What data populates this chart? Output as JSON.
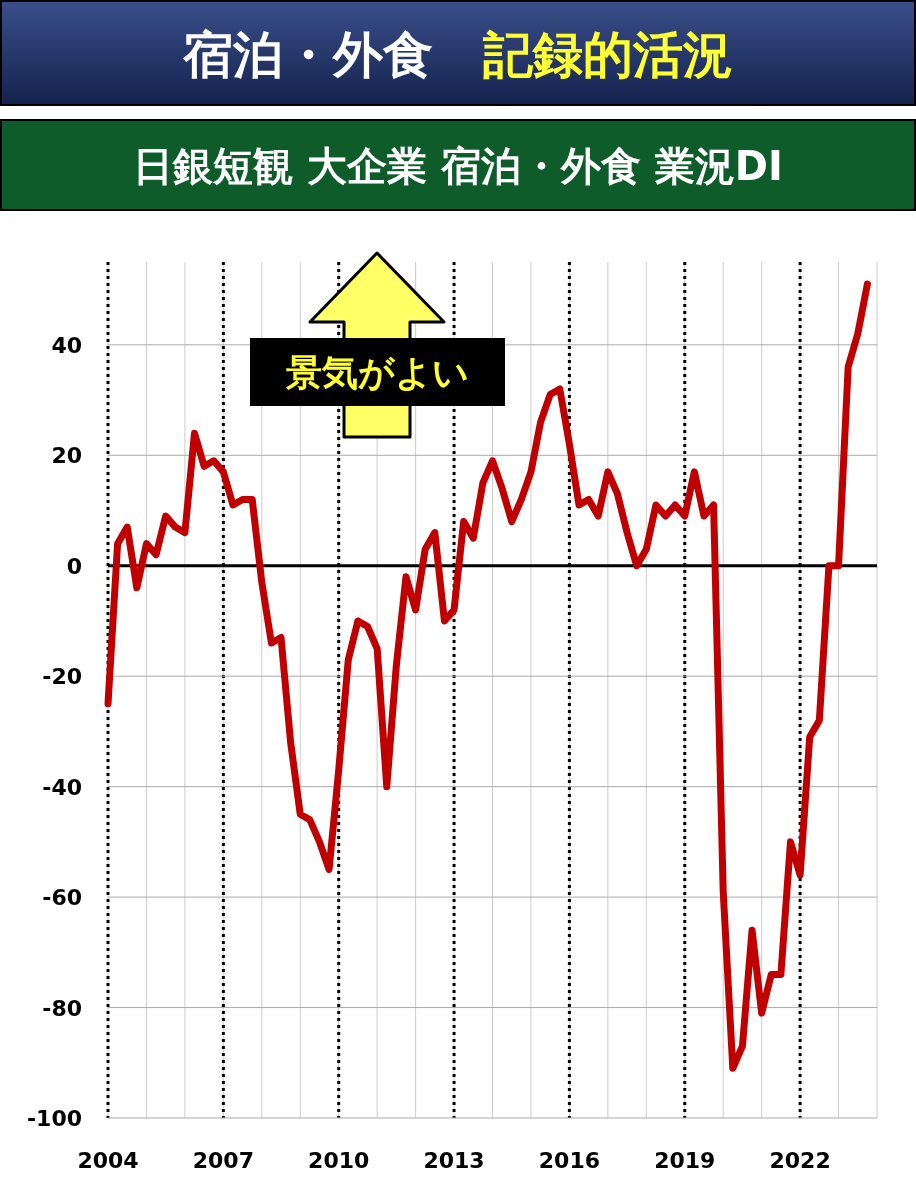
{
  "chart_data": {
    "type": "line",
    "title": "宿泊・外食　**記録的活況**",
    "subtitle": "日銀短観 大企業 宿泊・外食 業況DI",
    "annotations": [
      "景気がよい"
    ],
    "x": [
      2004,
      2004.25,
      2004.5,
      2004.75,
      2005,
      2005.25,
      2005.5,
      2005.75,
      2006,
      2006.25,
      2006.5,
      2006.75,
      2007,
      2007.25,
      2007.5,
      2007.75,
      2008,
      2008.25,
      2008.5,
      2008.75,
      2009,
      2009.25,
      2009.5,
      2009.75,
      2010,
      2010.25,
      2010.5,
      2010.75,
      2011,
      2011.25,
      2011.5,
      2011.75,
      2012,
      2012.25,
      2012.5,
      2012.75,
      2013,
      2013.25,
      2013.5,
      2013.75,
      2014,
      2014.25,
      2014.5,
      2014.75,
      2015,
      2015.25,
      2015.5,
      2015.75,
      2016,
      2016.25,
      2016.5,
      2016.75,
      2017,
      2017.25,
      2017.5,
      2017.75,
      2018,
      2018.25,
      2018.5,
      2018.75,
      2019,
      2019.25,
      2019.5,
      2019.75,
      2020,
      2020.25,
      2020.5,
      2020.75,
      2021,
      2021.25,
      2021.5,
      2021.75,
      2022,
      2022.25,
      2022.5,
      2022.75,
      2023,
      2023.25,
      2023.5,
      2023.75
    ],
    "series": [
      {
        "color": "#c00000",
        "values": [
          -25,
          4,
          7,
          -4,
          4,
          2,
          9,
          7,
          6,
          24,
          18,
          19,
          17,
          11,
          12,
          12,
          -3,
          -14,
          -13,
          -32,
          -45,
          -46,
          -50,
          -55,
          -37,
          -17,
          -10,
          -11,
          -15,
          -40,
          -18,
          -2,
          -8,
          3,
          6,
          -10,
          -8,
          8,
          5,
          15,
          19,
          14,
          8,
          12,
          17,
          26,
          31,
          32,
          22,
          11,
          12,
          9,
          17,
          13,
          6,
          0,
          3,
          11,
          9,
          11,
          9,
          17,
          9,
          11,
          -59,
          -91,
          -87,
          -66,
          -81,
          -74,
          -74,
          -50,
          -56,
          -31,
          -28,
          0,
          0,
          36,
          42,
          51
        ]
      }
    ],
    "xlim": [
      2004,
      2024
    ],
    "xticks": [
      2004,
      2007,
      2010,
      2013,
      2016,
      2019,
      2022
    ],
    "ylim": [
      -100,
      55
    ],
    "yticks": [
      -100,
      -80,
      -60,
      -40,
      -20,
      0,
      20,
      40
    ],
    "grid": true,
    "marker": "none",
    "line_style": "solid",
    "ref_lines": [
      {
        "axis": "y",
        "value": 0,
        "color": "#000000"
      }
    ]
  }
}
